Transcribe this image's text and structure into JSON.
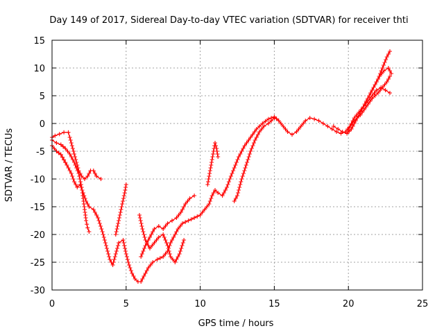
{
  "chart_data": {
    "type": "scatter",
    "title": "Day 149 of 2017, Sidereal Day-to-day VTEC variation (SDTVAR) for receiver thti",
    "xlabel": "GPS time / hours",
    "ylabel": "SDTVAR / TECUs",
    "xlim": [
      0,
      25
    ],
    "ylim": [
      -30,
      15
    ],
    "xticks": [
      "0",
      "5",
      "10",
      "15",
      "20",
      "25"
    ],
    "yticks": [
      "-30",
      "-25",
      "-20",
      "-15",
      "-10",
      "-5",
      "0",
      "5",
      "10",
      "15"
    ],
    "grid": true,
    "legend": "none",
    "marker": "plus",
    "series_color": "#ff0000",
    "series": [
      {
        "x": [
          0,
          0.3,
          0.6,
          1.0,
          1.3,
          1.5,
          1.7,
          1.9,
          2.1,
          2.3,
          2.5,
          2.8,
          3.1,
          3.4,
          3.7,
          3.9,
          4.1,
          4.3,
          4.5,
          4.8,
          5.0,
          5.2,
          5.4,
          5.6,
          5.8,
          6.0,
          6.2,
          6.5,
          6.8,
          7.1,
          7.5,
          7.8,
          8.0,
          8.2,
          8.5,
          8.8,
          9.2,
          9.6,
          10.0,
          10.3,
          10.6,
          10.8,
          11.0,
          11.2,
          11.5,
          11.8,
          12.0,
          12.3,
          12.6,
          13.0,
          13.4,
          13.8,
          14.2,
          14.6,
          15.0,
          15.3,
          15.6,
          15.9,
          16.2,
          16.5,
          16.8,
          17.1,
          17.4,
          17.7,
          18.0,
          18.3,
          18.6,
          18.9,
          19.2,
          19.5,
          19.8,
          20.1,
          20.4,
          20.7,
          21.0,
          21.3,
          21.6,
          21.9,
          22.2,
          22.5,
          22.8
        ],
        "y": [
          -4.0,
          -5.0,
          -5.6,
          -7.5,
          -9.0,
          -10.5,
          -11.5,
          -11.0,
          -12.5,
          -14.0,
          -15.0,
          -15.5,
          -17.0,
          -19.5,
          -22.5,
          -24.5,
          -25.5,
          -23.5,
          -21.5,
          -21.0,
          -23.5,
          -25.5,
          -27.0,
          -28.0,
          -28.5,
          -28.5,
          -27.5,
          -26.0,
          -25.0,
          -24.5,
          -24.0,
          -23.0,
          -21.5,
          -20.5,
          -19.0,
          -18.0,
          -17.5,
          -17.0,
          -16.5,
          -15.5,
          -14.5,
          -13.0,
          -12.0,
          -12.5,
          -13.0,
          -11.5,
          -10.0,
          -8.0,
          -6.0,
          -4.0,
          -2.5,
          -1.0,
          0.0,
          0.8,
          1.2,
          0.5,
          -0.5,
          -1.5,
          -2.0,
          -1.5,
          -0.5,
          0.5,
          1.0,
          0.8,
          0.5,
          0.0,
          -0.5,
          -1.0,
          -1.5,
          -1.8,
          -1.5,
          -0.5,
          1.0,
          2.0,
          3.0,
          4.0,
          5.0,
          6.0,
          6.5,
          6.0,
          5.5
        ]
      },
      {
        "x": [
          0,
          0.2,
          0.5,
          0.8,
          1.1,
          1.2,
          1.4,
          1.6,
          1.8,
          2.0,
          2.2,
          2.4,
          2.6,
          2.8,
          3.0,
          3.3
        ],
        "y": [
          -2.5,
          -2.2,
          -1.9,
          -1.6,
          -1.6,
          -2.5,
          -4.5,
          -6.5,
          -8.5,
          -9.5,
          -10.0,
          -9.5,
          -8.5,
          -8.5,
          -9.5,
          -10.0
        ]
      },
      {
        "x": [
          0,
          0.3,
          0.6,
          0.9,
          1.2,
          1.5,
          1.8,
          2.0,
          2.1,
          2.2,
          2.3,
          2.4,
          2.5
        ],
        "y": [
          -3.0,
          -3.5,
          -3.8,
          -4.5,
          -5.5,
          -7.0,
          -9.0,
          -11.5,
          -13.5,
          -15.5,
          -17.5,
          -18.8,
          -19.5
        ]
      },
      {
        "x": [
          4.3,
          4.5,
          4.7,
          4.9,
          5.0
        ],
        "y": [
          -20.0,
          -17.5,
          -15.0,
          -12.5,
          -11.0
        ]
      },
      {
        "x": [
          6.0,
          6.3,
          6.6,
          6.9,
          7.2,
          7.5,
          7.8,
          8.1,
          8.4,
          8.7,
          9.0,
          9.3,
          9.6
        ],
        "y": [
          -24.0,
          -22.0,
          -20.5,
          -19.0,
          -18.5,
          -19.0,
          -18.0,
          -17.5,
          -17.0,
          -16.0,
          -14.5,
          -13.5,
          -13.0
        ]
      },
      {
        "x": [
          5.9,
          6.1,
          6.3,
          6.6,
          6.9,
          7.2,
          7.5,
          7.8,
          8.0,
          8.3,
          8.6,
          8.9
        ],
        "y": [
          -16.5,
          -19.0,
          -21.0,
          -22.5,
          -21.5,
          -20.5,
          -20.0,
          -22.0,
          -24.0,
          -25.0,
          -23.5,
          -21.0
        ]
      },
      {
        "x": [
          10.5,
          10.7,
          10.9,
          11.0,
          11.1,
          11.2
        ],
        "y": [
          -11.0,
          -8.0,
          -5.0,
          -3.5,
          -4.5,
          -6.0
        ]
      },
      {
        "x": [
          12.3,
          12.5,
          12.8,
          13.1,
          13.4,
          13.7,
          14.0,
          14.3,
          14.6,
          15.0
        ],
        "y": [
          -14.0,
          -13.0,
          -10.0,
          -7.5,
          -5.0,
          -3.0,
          -1.5,
          -0.5,
          0.0,
          1.0
        ]
      },
      {
        "x": [
          19.0,
          19.3,
          19.6,
          19.9,
          20.2,
          20.5,
          20.8,
          21.1,
          21.4,
          21.7,
          22.0,
          22.3,
          22.6,
          22.8
        ],
        "y": [
          -0.5,
          -1.0,
          -1.5,
          -1.8,
          -1.0,
          0.5,
          2.0,
          3.5,
          5.0,
          6.5,
          8.0,
          10.0,
          12.0,
          13.0
        ]
      },
      {
        "x": [
          20.0,
          20.4,
          20.8,
          21.2,
          21.6,
          22.0,
          22.3,
          22.6,
          22.8
        ],
        "y": [
          -1.0,
          0.5,
          1.5,
          3.0,
          4.5,
          5.5,
          6.5,
          7.5,
          8.5
        ]
      },
      {
        "x": [
          21.5,
          21.8,
          22.1,
          22.4,
          22.7,
          22.9
        ],
        "y": [
          5.5,
          7.0,
          8.5,
          9.5,
          10.0,
          9.0
        ]
      }
    ]
  }
}
